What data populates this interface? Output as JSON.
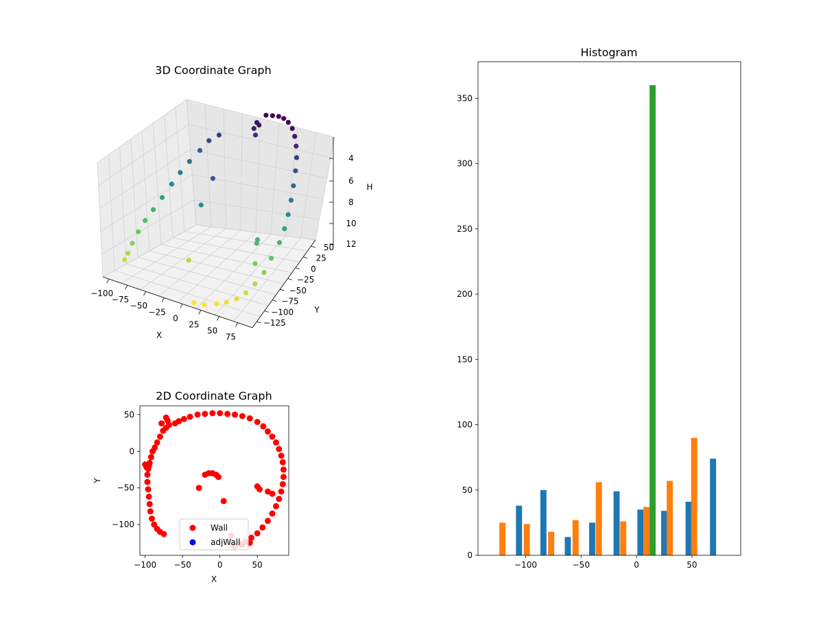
{
  "chart_data": [
    {
      "type": "scatter",
      "projection": "3d",
      "title": "3D Coordinate Graph",
      "xlabel": "X",
      "ylabel": "Y",
      "zlabel": "H",
      "xticks": [
        "−100",
        "−75",
        "−50",
        "−25",
        "0",
        "25",
        "50",
        "75"
      ],
      "yticks": [
        "50",
        "25",
        "0",
        "−25",
        "−50",
        "−75",
        "−100",
        "−125"
      ],
      "zticks": [
        "4",
        "6",
        "8",
        "10",
        "12"
      ],
      "xlim": [
        -105,
        90
      ],
      "ylim": [
        -135,
        55
      ],
      "zlim": [
        3,
        12.5
      ],
      "z_inverted": true,
      "colormap": "viridis",
      "note_color": "color follows point index along the wall trace",
      "points": [
        [
          -5,
          45,
          4.2
        ],
        [
          -2,
          46,
          4.4
        ],
        [
          -8,
          43,
          4.6
        ],
        [
          -4,
          41,
          5.0
        ],
        [
          5,
          52,
          3.8
        ],
        [
          15,
          53,
          3.8
        ],
        [
          25,
          53,
          3.8
        ],
        [
          35,
          50,
          3.8
        ],
        [
          45,
          46,
          3.9
        ],
        [
          55,
          40,
          4.1
        ],
        [
          63,
          33,
          4.4
        ],
        [
          70,
          25,
          4.8
        ],
        [
          76,
          16,
          5.3
        ],
        [
          80,
          6,
          5.9
        ],
        [
          83,
          -5,
          6.6
        ],
        [
          85,
          -15,
          7.3
        ],
        [
          86,
          -25,
          8.0
        ],
        [
          86,
          -35,
          8.7
        ],
        [
          84,
          -45,
          9.4
        ],
        [
          80,
          -60,
          10.1
        ],
        [
          76,
          -72,
          10.8
        ],
        [
          70,
          -85,
          11.3
        ],
        [
          63,
          -96,
          11.7
        ],
        [
          55,
          -105,
          12.0
        ],
        [
          45,
          -112,
          12.2
        ],
        [
          35,
          -118,
          12.3
        ],
        [
          22,
          -125,
          12.4
        ],
        [
          10,
          -128,
          12.4
        ],
        [
          -20,
          -35,
          6.3
        ],
        [
          -28,
          -48,
          8.0
        ],
        [
          55,
          -50,
          9.4
        ],
        [
          55,
          -52,
          9.6
        ],
        [
          60,
          -65,
          10.6
        ],
        [
          -60,
          38,
          5.3
        ],
        [
          -70,
          30,
          5.6
        ],
        [
          -78,
          22,
          6.2
        ],
        [
          -85,
          10,
          6.8
        ],
        [
          -90,
          -2,
          7.4
        ],
        [
          -93,
          -15,
          8.0
        ],
        [
          -96,
          -30,
          8.7
        ],
        [
          -98,
          -45,
          9.3
        ],
        [
          -99,
          -60,
          9.8
        ],
        [
          -98,
          -75,
          10.3
        ],
        [
          -96,
          -90,
          10.8
        ],
        [
          -95,
          -100,
          11.3
        ],
        [
          -94,
          -108,
          11.6
        ],
        [
          -30,
          -70,
          11.5
        ]
      ]
    },
    {
      "type": "scatter",
      "title": "2D Coordinate Graph",
      "xlabel": "X",
      "ylabel": "Y",
      "xticks": [
        -100,
        -50,
        0,
        50
      ],
      "yticks": [
        -100,
        -50,
        0,
        50
      ],
      "xlim": [
        -107,
        92
      ],
      "ylim": [
        -142,
        62
      ],
      "legend": {
        "placement": "lower center",
        "entries": [
          {
            "label": "Wall",
            "color": "#ff0000"
          },
          {
            "label": "adjWall",
            "color": "#0000ff"
          }
        ]
      },
      "series": [
        {
          "name": "Wall",
          "color": "#ff0000",
          "points": [
            [
              -60,
              38
            ],
            [
              -55,
              41
            ],
            [
              -48,
              44
            ],
            [
              -40,
              47
            ],
            [
              -30,
              50
            ],
            [
              -20,
              51
            ],
            [
              -10,
              52
            ],
            [
              0,
              52
            ],
            [
              10,
              51
            ],
            [
              20,
              50
            ],
            [
              30,
              48
            ],
            [
              40,
              45
            ],
            [
              50,
              40
            ],
            [
              58,
              34
            ],
            [
              64,
              27
            ],
            [
              70,
              20
            ],
            [
              75,
              12
            ],
            [
              79,
              3
            ],
            [
              82,
              -6
            ],
            [
              84,
              -15
            ],
            [
              85,
              -25
            ],
            [
              85,
              -35
            ],
            [
              84,
              -45
            ],
            [
              82,
              -55
            ],
            [
              79,
              -65
            ],
            [
              75,
              -75
            ],
            [
              70,
              -85
            ],
            [
              64,
              -95
            ],
            [
              57,
              -104
            ],
            [
              50,
              -112
            ],
            [
              42,
              -118
            ],
            [
              34,
              -123
            ],
            [
              26,
              -126
            ],
            [
              18,
              -128
            ],
            [
              -68,
              36
            ],
            [
              -72,
              32
            ],
            [
              -76,
              28
            ],
            [
              -80,
              20
            ],
            [
              -84,
              12
            ],
            [
              -87,
              5
            ],
            [
              -90,
              0
            ],
            [
              -92,
              -8
            ],
            [
              -94,
              -16
            ],
            [
              -96,
              -24
            ],
            [
              -97,
              -32
            ],
            [
              -97,
              -42
            ],
            [
              -96,
              -52
            ],
            [
              -95,
              -62
            ],
            [
              -94,
              -72
            ],
            [
              -93,
              -82
            ],
            [
              -91,
              -92
            ],
            [
              -88,
              -100
            ],
            [
              -84,
              -106
            ],
            [
              -80,
              -110
            ],
            [
              -75,
              -113
            ],
            [
              -100,
              -18
            ],
            [
              -98,
              -22
            ],
            [
              -95,
              -20
            ],
            [
              -70,
              42
            ],
            [
              -78,
              38
            ],
            [
              -72,
              46
            ],
            [
              -20,
              -32
            ],
            [
              -15,
              -30
            ],
            [
              -10,
              -30
            ],
            [
              -5,
              -32
            ],
            [
              -2,
              -35
            ],
            [
              -28,
              -50
            ],
            [
              5,
              -68
            ],
            [
              50,
              -48
            ],
            [
              53,
              -52
            ],
            [
              64,
              -55
            ],
            [
              70,
              -58
            ],
            [
              15,
              -115
            ],
            [
              20,
              -130
            ],
            [
              30,
              -128
            ],
            [
              40,
              -125
            ]
          ]
        },
        {
          "name": "adjWall",
          "color": "#0000ff",
          "points": []
        }
      ]
    },
    {
      "type": "bar",
      "title": "Histogram",
      "xticks": [
        -100,
        -50,
        0,
        50
      ],
      "yticks": [
        0,
        50,
        100,
        150,
        200,
        250,
        300,
        350
      ],
      "xlim": [
        -143,
        94
      ],
      "ylim": [
        0,
        378
      ],
      "bin_width": 5.5,
      "series": [
        {
          "color": "#1f77b4",
          "bars": [
            [
              -106,
              38
            ],
            [
              -84,
              50
            ],
            [
              -62,
              14
            ],
            [
              -40,
              25
            ],
            [
              -18,
              49
            ],
            [
              3.5,
              35
            ],
            [
              25,
              34
            ],
            [
              47,
              41
            ],
            [
              69,
              74
            ]
          ]
        },
        {
          "color": "#ff7f0e",
          "bars": [
            [
              -121,
              25
            ],
            [
              -99,
              24
            ],
            [
              -77,
              18
            ],
            [
              -55,
              27
            ],
            [
              -34,
              56
            ],
            [
              -12,
              26
            ],
            [
              9,
              37
            ],
            [
              30,
              57
            ],
            [
              52,
              90
            ]
          ]
        },
        {
          "color": "#2ca02c",
          "bars": [
            [
              14.5,
              360
            ]
          ]
        }
      ]
    }
  ]
}
